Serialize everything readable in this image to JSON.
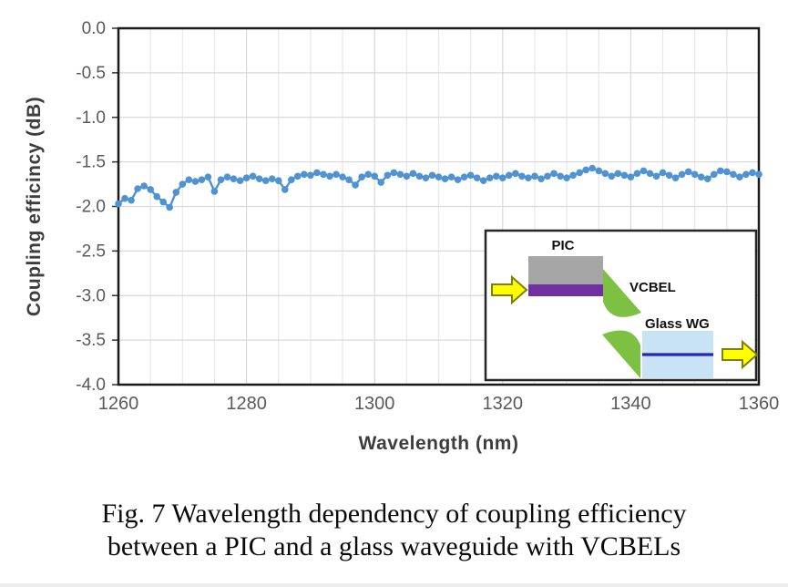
{
  "figure": {
    "caption_line1": "Fig. 7 Wavelength dependency of coupling efficiency",
    "caption_line2": "between a PIC and a glass waveguide with VCBELs"
  },
  "axis": {
    "y_ticks": [
      "0.0",
      "-0.5",
      "-1.0",
      "-1.5",
      "-2.0",
      "-2.5",
      "-3.0",
      "-3.5",
      "-4.0"
    ],
    "x_ticks": [
      "1260",
      "1280",
      "1300",
      "1320",
      "1340",
      "1360"
    ]
  },
  "chart_data": {
    "type": "line",
    "title": "",
    "xlabel": "Wavelength (nm)",
    "ylabel": "Coupling efficincy (dB)",
    "xlim": [
      1260,
      1360
    ],
    "ylim": [
      -4.0,
      0.0
    ],
    "x_tick_step": 20,
    "x_grid_step": 5,
    "y_tick_step": 0.5,
    "grid": true,
    "legend": "none",
    "marker": "circle",
    "marker_color": "#4f93d2",
    "line_color": "#4f93d2",
    "x": [
      1260,
      1261,
      1262,
      1263,
      1264,
      1265,
      1266,
      1267,
      1268,
      1269,
      1270,
      1271,
      1272,
      1273,
      1274,
      1275,
      1276,
      1277,
      1278,
      1279,
      1280,
      1281,
      1282,
      1283,
      1284,
      1285,
      1286,
      1287,
      1288,
      1289,
      1290,
      1291,
      1292,
      1293,
      1294,
      1295,
      1296,
      1297,
      1298,
      1299,
      1300,
      1301,
      1302,
      1303,
      1304,
      1305,
      1306,
      1307,
      1308,
      1309,
      1310,
      1311,
      1312,
      1313,
      1314,
      1315,
      1316,
      1317,
      1318,
      1319,
      1320,
      1321,
      1322,
      1323,
      1324,
      1325,
      1326,
      1327,
      1328,
      1329,
      1330,
      1331,
      1332,
      1333,
      1334,
      1335,
      1336,
      1337,
      1338,
      1339,
      1340,
      1341,
      1342,
      1343,
      1344,
      1345,
      1346,
      1347,
      1348,
      1349,
      1350,
      1351,
      1352,
      1353,
      1354,
      1355,
      1356,
      1357,
      1358,
      1359,
      1360
    ],
    "y": [
      -1.97,
      -1.91,
      -1.93,
      -1.8,
      -1.77,
      -1.81,
      -1.89,
      -1.95,
      -2.01,
      -1.84,
      -1.75,
      -1.7,
      -1.72,
      -1.7,
      -1.67,
      -1.83,
      -1.7,
      -1.67,
      -1.69,
      -1.71,
      -1.68,
      -1.66,
      -1.69,
      -1.71,
      -1.69,
      -1.71,
      -1.81,
      -1.7,
      -1.66,
      -1.64,
      -1.65,
      -1.62,
      -1.64,
      -1.66,
      -1.64,
      -1.67,
      -1.7,
      -1.76,
      -1.67,
      -1.64,
      -1.66,
      -1.73,
      -1.65,
      -1.62,
      -1.64,
      -1.66,
      -1.63,
      -1.66,
      -1.68,
      -1.65,
      -1.67,
      -1.69,
      -1.67,
      -1.7,
      -1.67,
      -1.65,
      -1.68,
      -1.71,
      -1.68,
      -1.66,
      -1.68,
      -1.65,
      -1.63,
      -1.66,
      -1.68,
      -1.66,
      -1.69,
      -1.66,
      -1.63,
      -1.66,
      -1.68,
      -1.65,
      -1.62,
      -1.59,
      -1.57,
      -1.6,
      -1.63,
      -1.66,
      -1.63,
      -1.65,
      -1.67,
      -1.63,
      -1.6,
      -1.63,
      -1.66,
      -1.62,
      -1.65,
      -1.68,
      -1.64,
      -1.61,
      -1.64,
      -1.67,
      -1.69,
      -1.64,
      -1.6,
      -1.61,
      -1.64,
      -1.67,
      -1.64,
      -1.62,
      -1.64
    ]
  },
  "inset": {
    "labels": {
      "pic": "PIC",
      "vcbel": "VCBEL",
      "glass_wg": "Glass WG"
    },
    "colors": {
      "pic_gray": "#a6a6a6",
      "waveguide_purple": "#7030a0",
      "mirror_green": "#7cc142",
      "glass_blue": "#c9e3f6",
      "core_navy": "#2424c0",
      "arrow_yellow": "#ffff00",
      "arrow_border": "#7f7f00",
      "border_black": "#262626"
    }
  },
  "style": {
    "tick_color": "#595959",
    "axis_title_color": "#3d3d3d",
    "grid_minor": "#e7e7e7",
    "grid_major": "#d9d9d9",
    "plot_border": "#1a1a1a"
  }
}
